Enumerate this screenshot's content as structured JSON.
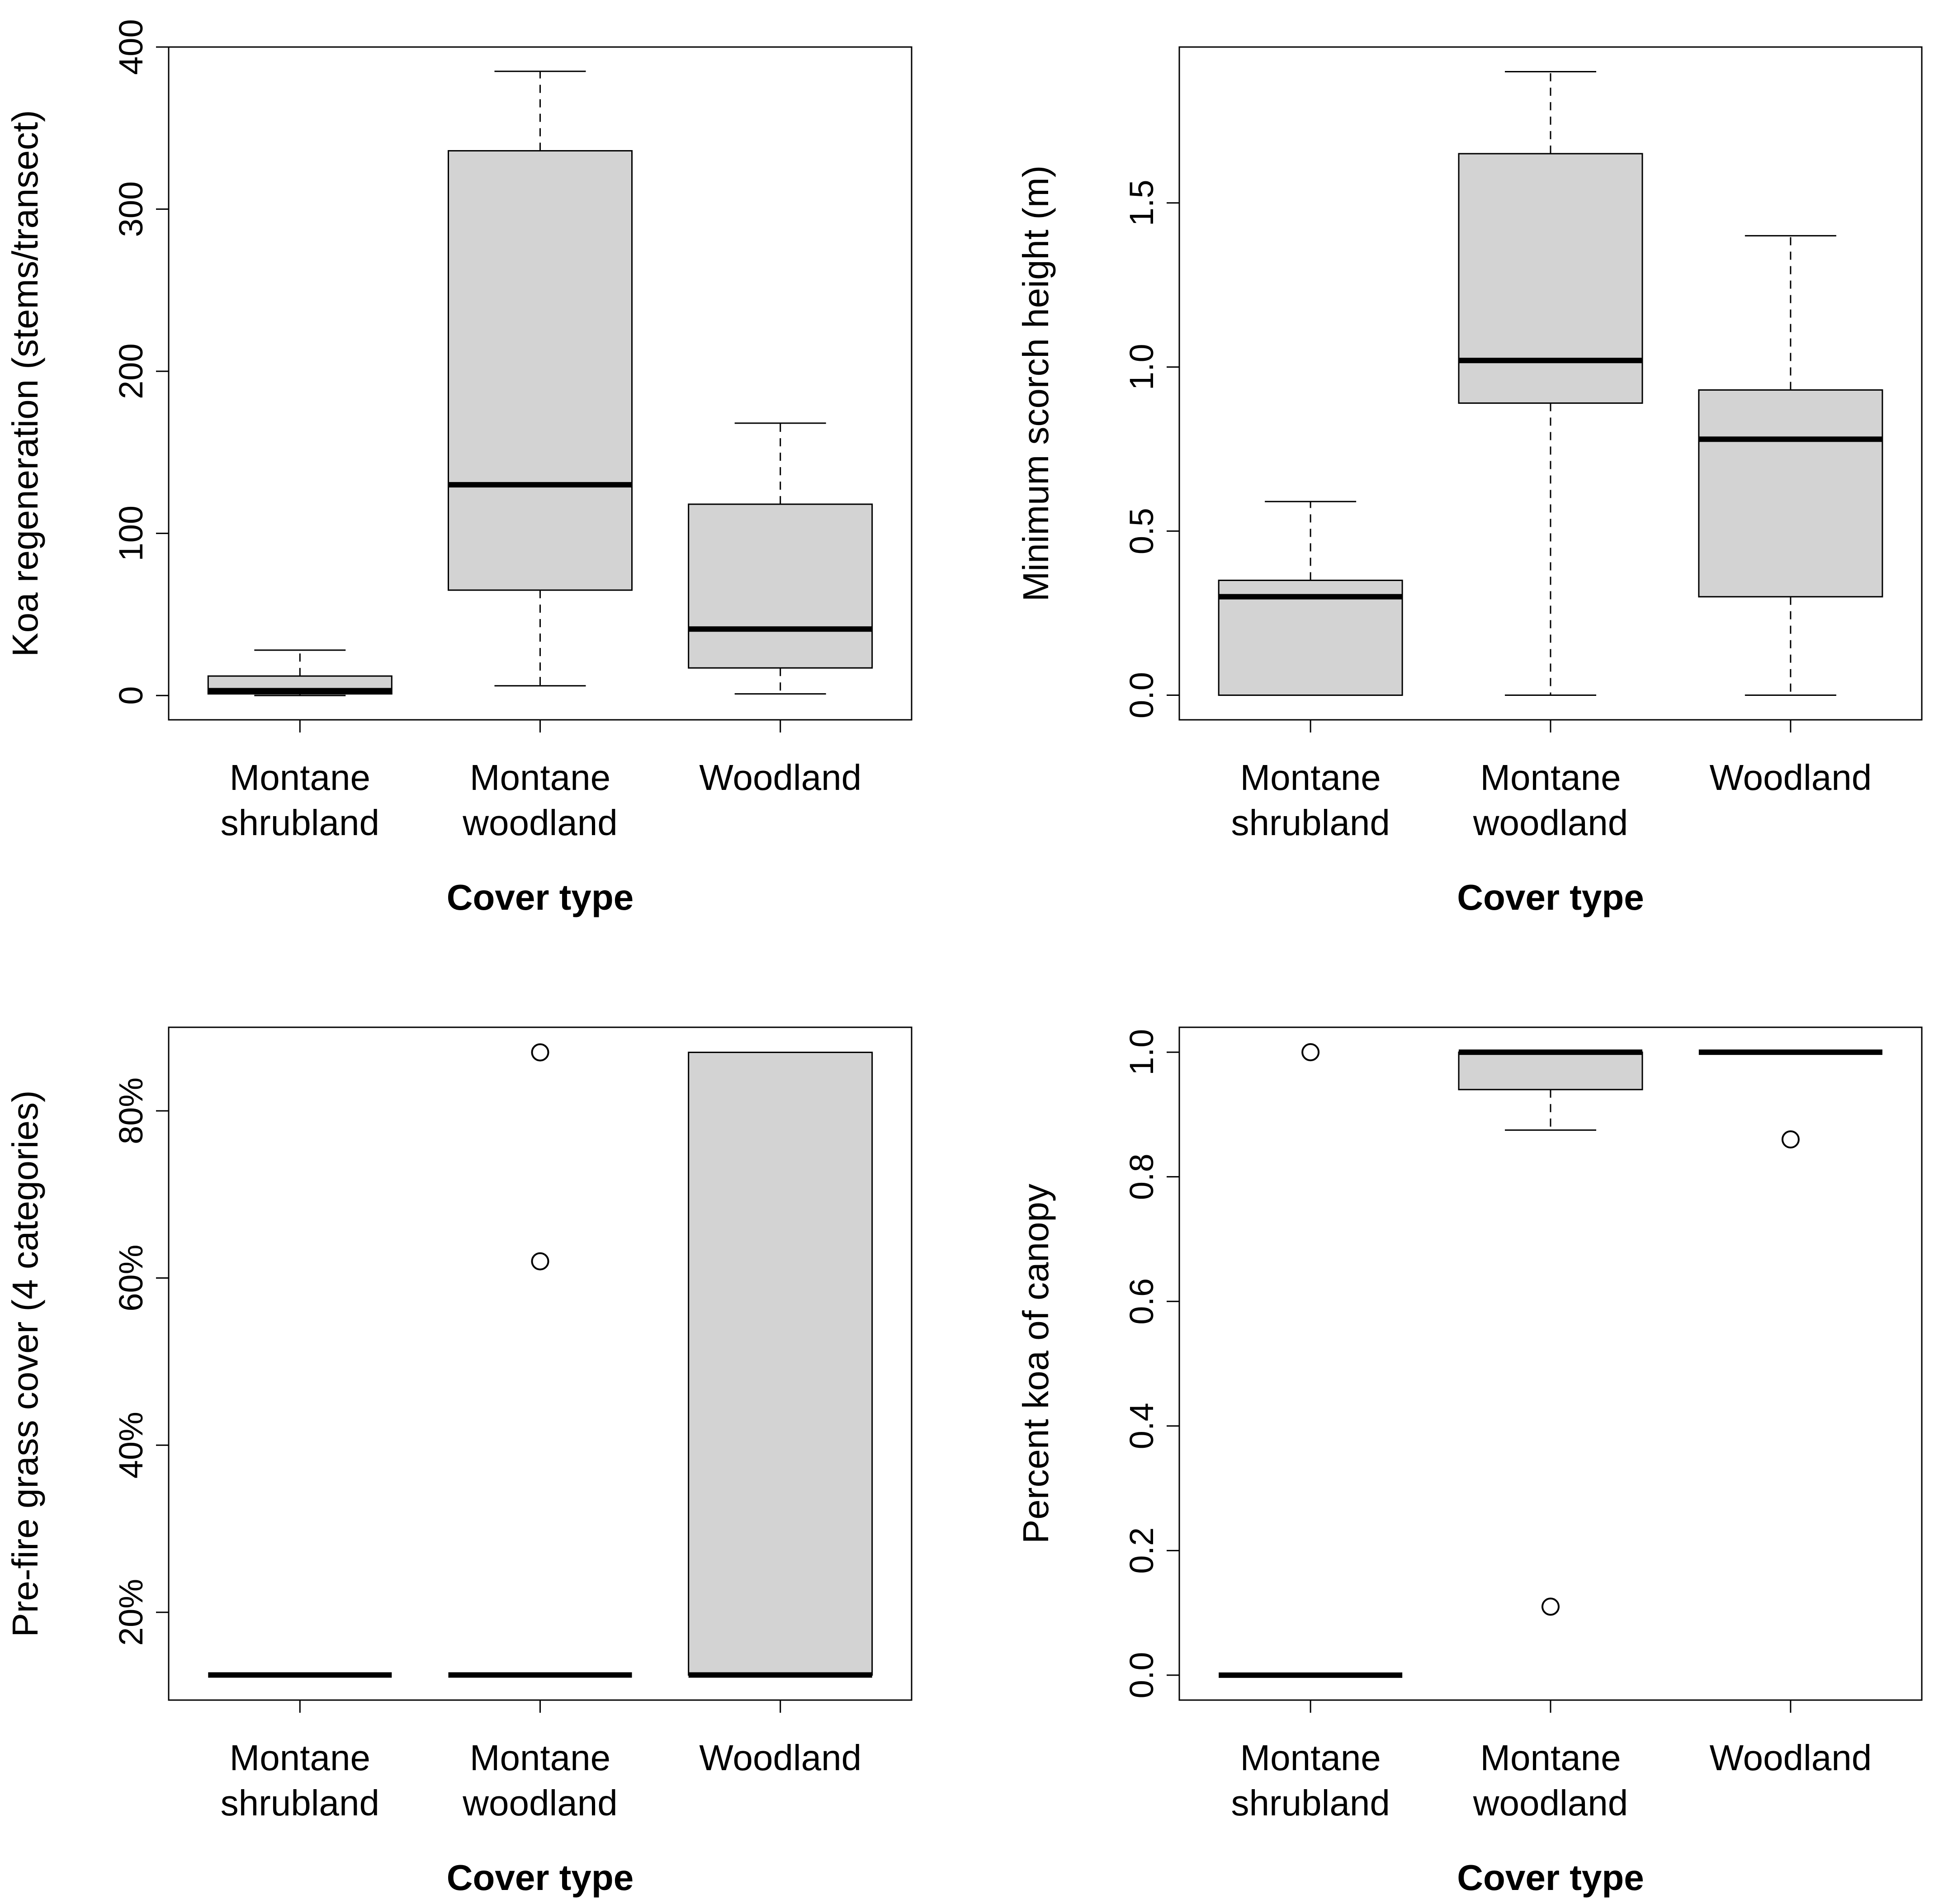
{
  "colors": {
    "box_fill": "#d3d3d3",
    "stroke": "#000000",
    "background": "#ffffff"
  },
  "chart_data": [
    {
      "type": "box",
      "xlabel": "Cover type",
      "ylabel": "Koa regeneration (stems/transect)",
      "ylim": [
        -15,
        400
      ],
      "yticks": [
        0,
        100,
        200,
        300,
        400
      ],
      "ytick_labels": [
        "0",
        "100",
        "200",
        "300",
        "400"
      ],
      "grid": false,
      "categories": [
        "Montane shrubland",
        "Montane woodland",
        "Woodland"
      ],
      "boxes": [
        {
          "category": "Montane shrubland",
          "whisker_low": 0,
          "q1": 1,
          "median": 3,
          "q3": 12,
          "whisker_high": 28,
          "outliers": []
        },
        {
          "category": "Montane woodland",
          "whisker_low": 6,
          "q1": 65,
          "median": 130,
          "q3": 336,
          "whisker_high": 385,
          "outliers": []
        },
        {
          "category": "Woodland",
          "whisker_low": 1,
          "q1": 17,
          "median": 41,
          "q3": 118,
          "whisker_high": 168,
          "outliers": []
        }
      ]
    },
    {
      "type": "box",
      "xlabel": "Cover type",
      "ylabel": "Minimum scorch height (m)",
      "ylim": [
        -0.075,
        1.975
      ],
      "yticks": [
        0,
        0.5,
        1,
        1.5
      ],
      "ytick_labels": [
        "0.0",
        "0.5",
        "1.0",
        "1.5"
      ],
      "grid": false,
      "categories": [
        "Montane shrubland",
        "Montane woodland",
        "Woodland"
      ],
      "boxes": [
        {
          "category": "Montane shrubland",
          "whisker_low": 0,
          "q1": 0,
          "median": 0.3,
          "q3": 0.35,
          "whisker_high": 0.59,
          "outliers": []
        },
        {
          "category": "Montane woodland",
          "whisker_low": 0,
          "q1": 0.89,
          "median": 1.02,
          "q3": 1.65,
          "whisker_high": 1.9,
          "outliers": []
        },
        {
          "category": "Woodland",
          "whisker_low": 0,
          "q1": 0.3,
          "median": 0.78,
          "q3": 0.93,
          "whisker_high": 1.4,
          "outliers": []
        }
      ]
    },
    {
      "type": "box",
      "xlabel": "Cover type",
      "ylabel": "Pre-fire grass cover (4 categories)",
      "ylim": [
        9.5,
        90
      ],
      "yticks": [
        20,
        40,
        60,
        80
      ],
      "ytick_labels": [
        "20%",
        "40%",
        "60%",
        "80%"
      ],
      "grid": false,
      "categories": [
        "Montane shrubland",
        "Montane woodland",
        "Woodland"
      ],
      "boxes": [
        {
          "category": "Montane shrubland",
          "whisker_low": 12.5,
          "q1": 12.5,
          "median": 12.5,
          "q3": 12.5,
          "whisker_high": 12.5,
          "outliers": []
        },
        {
          "category": "Montane woodland",
          "whisker_low": 12.5,
          "q1": 12.5,
          "median": 12.5,
          "q3": 12.5,
          "whisker_high": 12.5,
          "outliers": [
            62,
            87
          ]
        },
        {
          "category": "Woodland",
          "whisker_low": 12.5,
          "q1": 12.5,
          "median": 12.5,
          "q3": 87,
          "whisker_high": 87,
          "outliers": []
        }
      ]
    },
    {
      "type": "box",
      "xlabel": "Cover type",
      "ylabel": "Percent koa of canopy",
      "ylim": [
        -0.04,
        1.04
      ],
      "yticks": [
        0,
        0.2,
        0.4,
        0.6,
        0.8,
        1
      ],
      "ytick_labels": [
        "0.0",
        "0.2",
        "0.4",
        "0.6",
        "0.8",
        "1.0"
      ],
      "grid": false,
      "categories": [
        "Montane shrubland",
        "Montane woodland",
        "Woodland"
      ],
      "boxes": [
        {
          "category": "Montane shrubland",
          "whisker_low": 0,
          "q1": 0,
          "median": 0,
          "q3": 0,
          "whisker_high": 0,
          "outliers": [
            1.0
          ]
        },
        {
          "category": "Montane woodland",
          "whisker_low": 0.875,
          "q1": 0.94,
          "median": 1.0,
          "q3": 1.0,
          "whisker_high": 1.0,
          "outliers": [
            0.11
          ]
        },
        {
          "category": "Woodland",
          "whisker_low": 1.0,
          "q1": 1.0,
          "median": 1.0,
          "q3": 1.0,
          "whisker_high": 1.0,
          "outliers": [
            0.86
          ]
        }
      ]
    }
  ]
}
